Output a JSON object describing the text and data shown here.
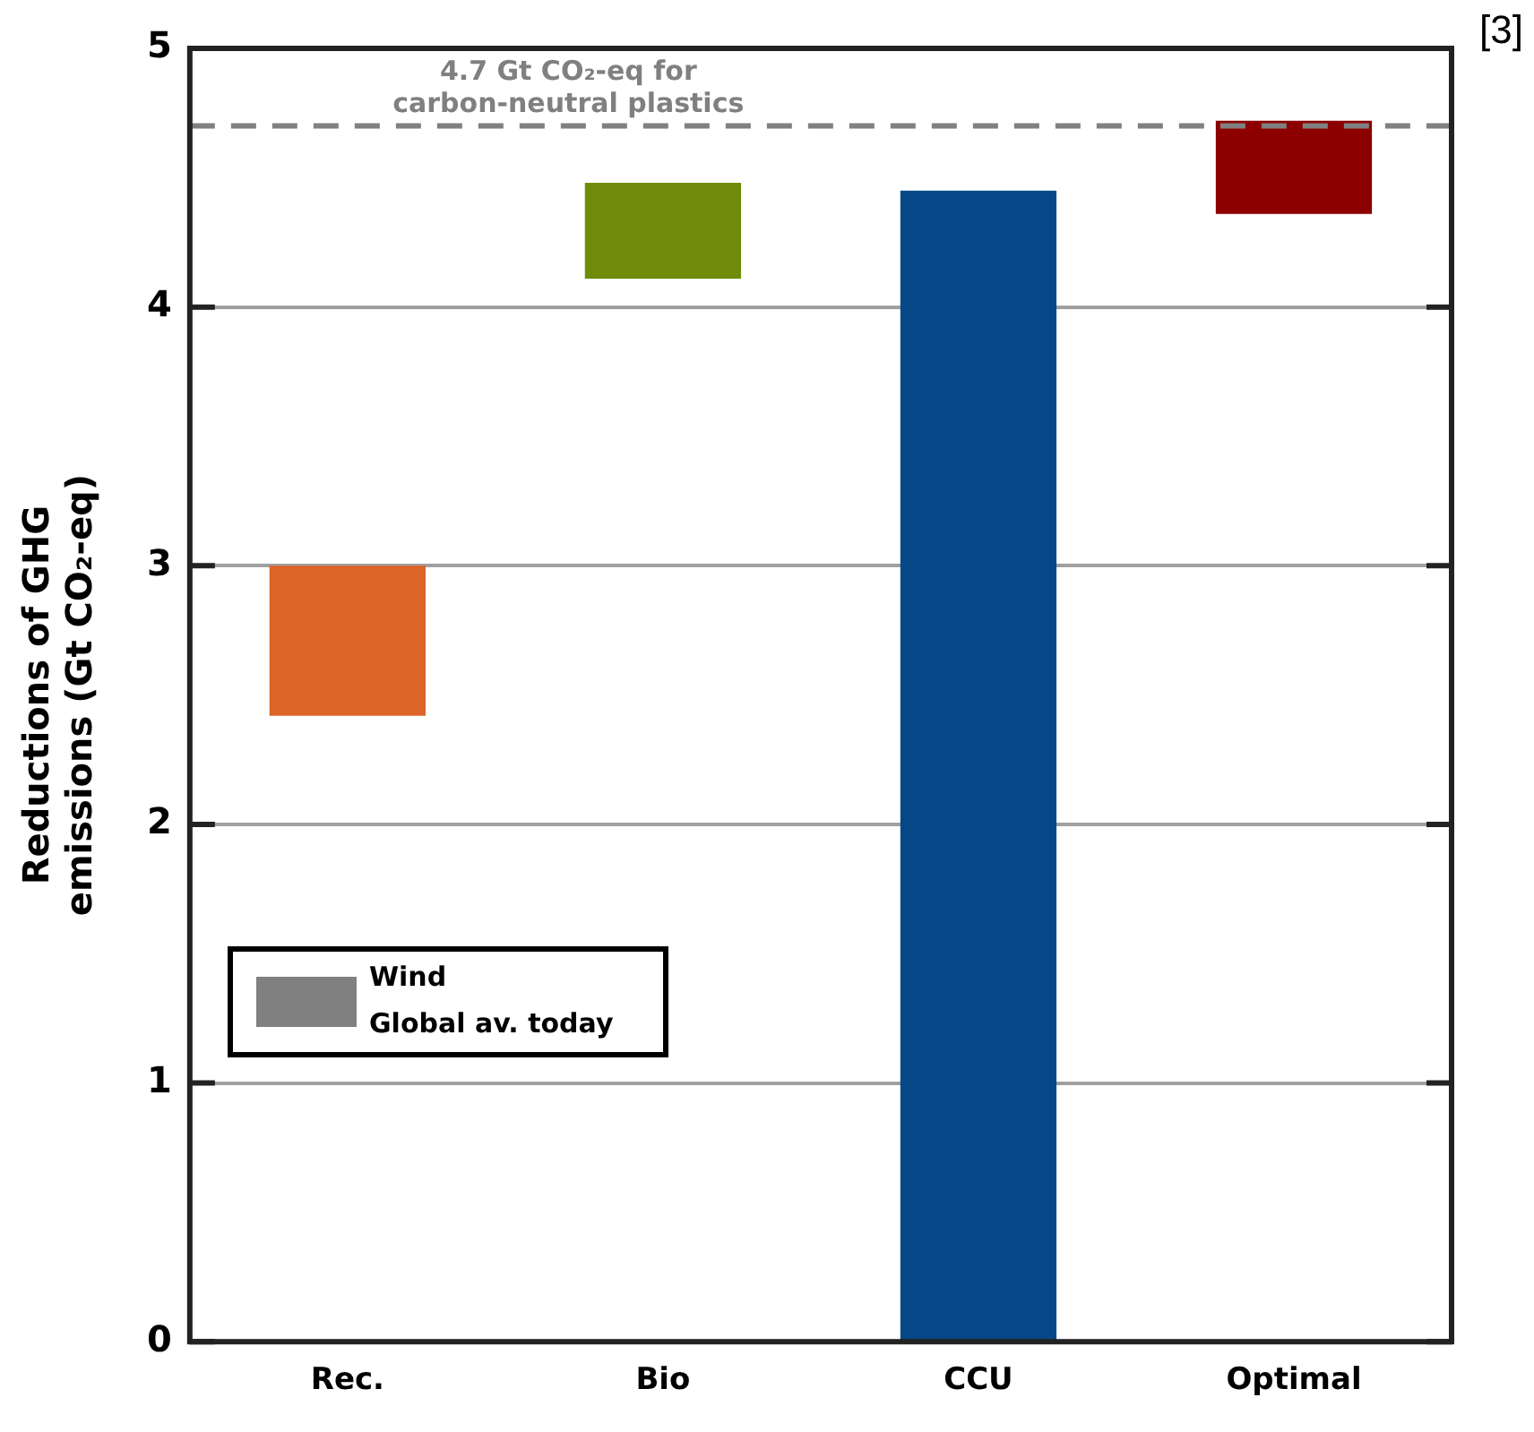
{
  "chart_data": {
    "type": "bar",
    "categories": [
      "Rec.",
      "Bio",
      "CCU",
      "Optimal"
    ],
    "values": [
      0.58,
      0.37,
      4.45,
      0.36
    ],
    "base": [
      2.42,
      4.11,
      0,
      4.36
    ],
    "colors": [
      "#dc6428",
      "#6e8c0a",
      "#064887",
      "#8c0000"
    ],
    "ylabel": "Reductions of GHG emissions (Gt CO₂-eq)",
    "ylim": [
      0,
      5
    ],
    "yticks": [
      0,
      1,
      2,
      3,
      4,
      5
    ],
    "grid": "y",
    "ref_lines": [
      {
        "axis": "y",
        "value": 4.7,
        "label": "4.7 Gt CO₂-eq for carbon-neutral plastics",
        "color": "#808080",
        "line_style": "dashed"
      }
    ],
    "annotations": [
      "[3]",
      "Wind",
      "Global av. today"
    ]
  }
}
